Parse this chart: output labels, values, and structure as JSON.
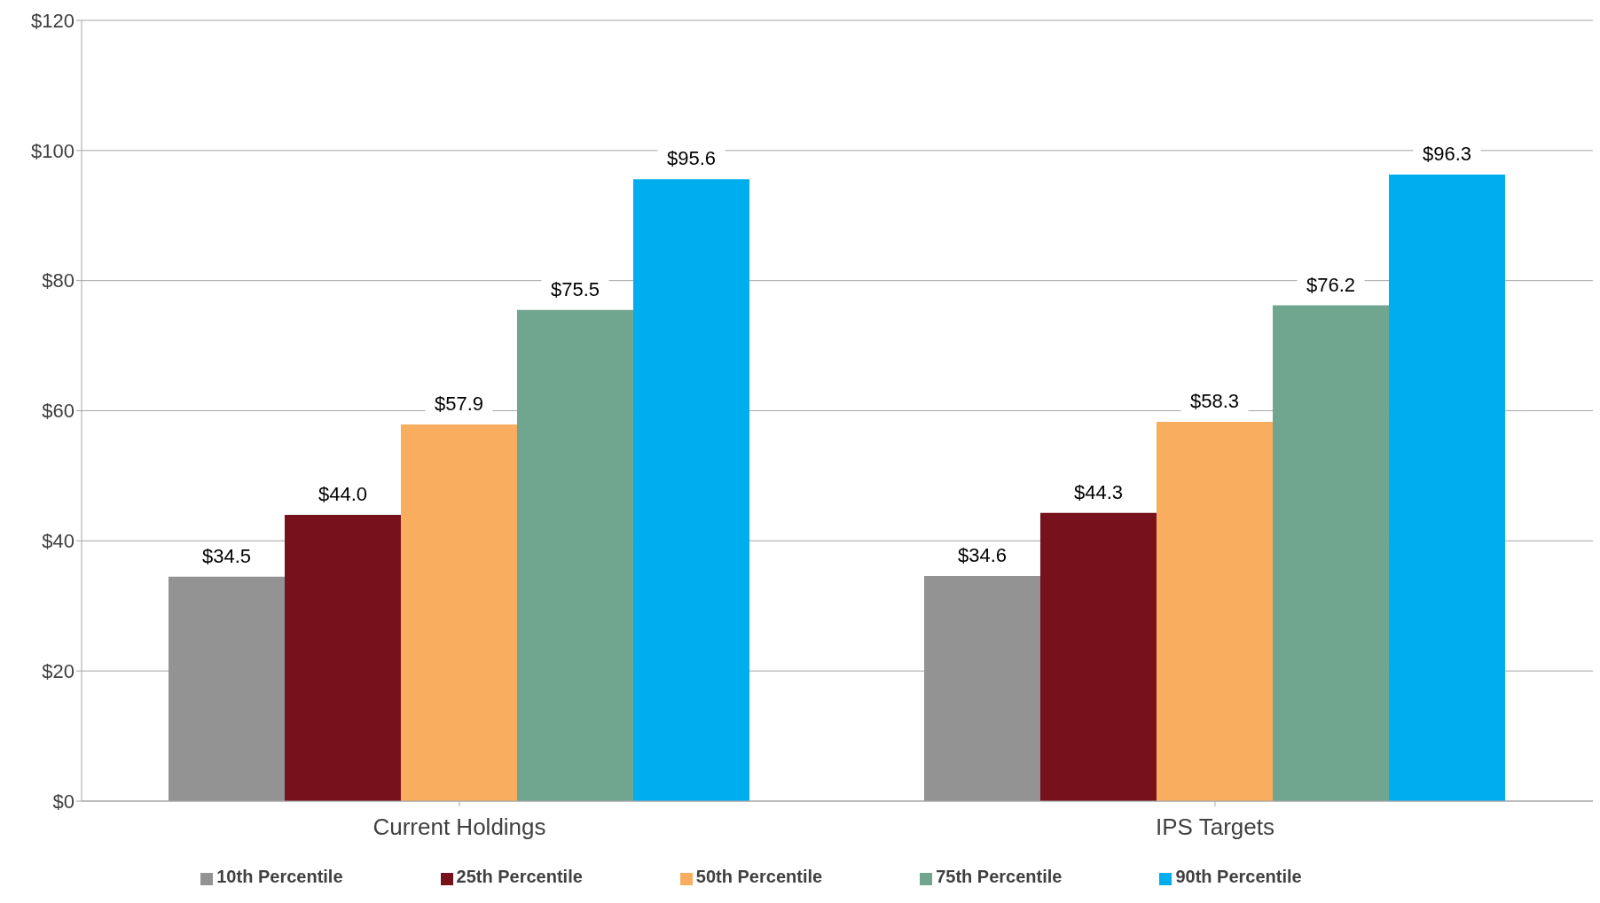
{
  "chart_data": {
    "type": "bar",
    "categories": [
      "Current Holdings",
      "IPS Targets"
    ],
    "series": [
      {
        "name": "10th Percentile",
        "color": "#939393",
        "values": [
          34.5,
          34.6
        ],
        "value_labels": [
          "$34.5",
          "$34.6"
        ]
      },
      {
        "name": "25th Percentile",
        "color": "#77111c",
        "values": [
          44.0,
          44.3
        ],
        "value_labels": [
          "$44.0",
          "$44.3"
        ]
      },
      {
        "name": "50th Percentile",
        "color": "#f9ae5f",
        "values": [
          57.9,
          58.3
        ],
        "value_labels": [
          "$57.9",
          "$58.3"
        ]
      },
      {
        "name": "75th Percentile",
        "color": "#70a58f",
        "values": [
          75.5,
          76.2
        ],
        "value_labels": [
          "$75.5",
          "$76.2"
        ]
      },
      {
        "name": "90th Percentile",
        "color": "#00adee",
        "values": [
          95.6,
          96.3
        ],
        "value_labels": [
          "$95.6",
          "$96.3"
        ]
      }
    ],
    "ylim": [
      0,
      120
    ],
    "yticks": [
      {
        "value": 0,
        "label": "$0"
      },
      {
        "value": 20,
        "label": "$20"
      },
      {
        "value": 40,
        "label": "$40"
      },
      {
        "value": 60,
        "label": "$60"
      },
      {
        "value": 80,
        "label": "$80"
      },
      {
        "value": 100,
        "label": "$100"
      },
      {
        "value": 120,
        "label": "$120"
      }
    ],
    "grid": "y",
    "legend": "bottom"
  }
}
